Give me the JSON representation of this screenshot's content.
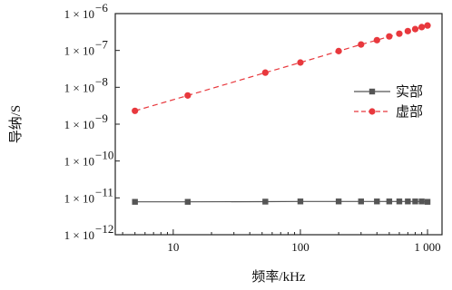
{
  "chart_data": {
    "type": "line",
    "x_scale": "log",
    "y_scale": "log",
    "xlabel": "频率/kHz",
    "ylabel": "导纳/S",
    "xlim": [
      3.5,
      1300
    ],
    "ylim": [
      1e-12,
      1e-06
    ],
    "x_ticks": [
      {
        "value": 10,
        "label": "10"
      },
      {
        "value": 100,
        "label": "100"
      },
      {
        "value": 1000,
        "label": "1 000"
      }
    ],
    "y_ticks": [
      {
        "value": 1e-06,
        "mant": "1 × 10",
        "exp": "−6"
      },
      {
        "value": 1e-07,
        "mant": "1 × 10",
        "exp": "−7"
      },
      {
        "value": 1e-08,
        "mant": "1 × 10",
        "exp": "−8"
      },
      {
        "value": 1e-09,
        "mant": "1 × 10",
        "exp": "−9"
      },
      {
        "value": 1e-10,
        "mant": "1 × 10",
        "exp": "−10"
      },
      {
        "value": 1e-11,
        "mant": "1 × 10",
        "exp": "−11"
      },
      {
        "value": 1e-12,
        "mant": "1 × 10",
        "exp": "−12"
      }
    ],
    "grid": false,
    "legend_position": "right, middle",
    "series": [
      {
        "name": "实部",
        "color": "#555555",
        "marker": "square",
        "line_style": "solid",
        "x": [
          5,
          13,
          53,
          100,
          200,
          300,
          400,
          500,
          600,
          700,
          800,
          900,
          1000
        ],
        "y": [
          7.8e-12,
          7.8e-12,
          7.9e-12,
          8e-12,
          8e-12,
          8e-12,
          8e-12,
          8e-12,
          8e-12,
          8e-12,
          8e-12,
          8e-12,
          7.8e-12
        ]
      },
      {
        "name": "虚部",
        "color": "#e8383d",
        "marker": "circle",
        "line_style": "dashed",
        "x": [
          5,
          13,
          53,
          100,
          200,
          300,
          400,
          500,
          600,
          700,
          800,
          900,
          1000
        ],
        "y": [
          2.3e-09,
          6e-09,
          2.5e-08,
          4.7e-08,
          9.6e-08,
          1.45e-07,
          1.9e-07,
          2.4e-07,
          2.85e-07,
          3.35e-07,
          3.8e-07,
          4.3e-07,
          4.75e-07
        ]
      }
    ]
  }
}
